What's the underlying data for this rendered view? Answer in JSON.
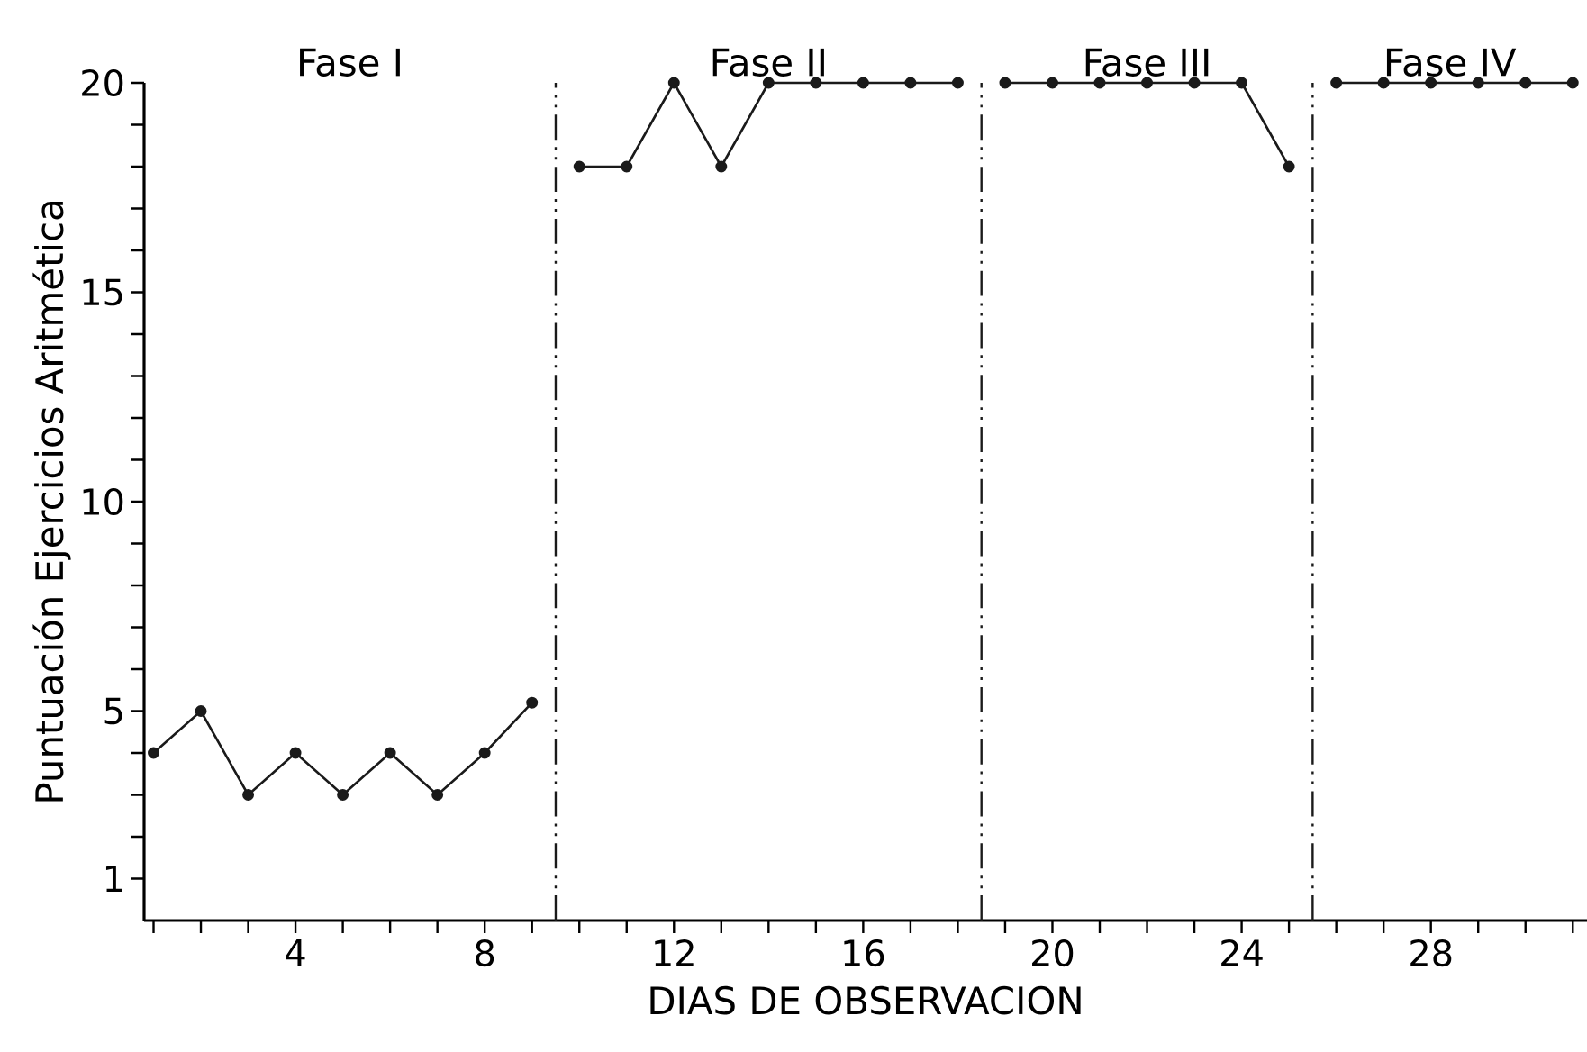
{
  "chart_data": {
    "type": "line",
    "xlabel": "DIAS DE OBSERVACION",
    "ylabel": "Puntuación Ejercicios Aritmética",
    "xlim": [
      0.8,
      31.3
    ],
    "ylim": [
      0,
      20
    ],
    "xticks": [
      {
        "value": 1,
        "label": null
      },
      {
        "value": 2,
        "label": null
      },
      {
        "value": 3,
        "label": null
      },
      4,
      {
        "value": 5,
        "label": null
      },
      {
        "value": 6,
        "label": null
      },
      {
        "value": 7,
        "label": null
      },
      8,
      {
        "value": 9,
        "label": null
      },
      {
        "value": 10,
        "label": null
      },
      {
        "value": 11,
        "label": null
      },
      12,
      {
        "value": 13,
        "label": null
      },
      {
        "value": 14,
        "label": null
      },
      {
        "value": 15,
        "label": null
      },
      16,
      {
        "value": 17,
        "label": null
      },
      {
        "value": 18,
        "label": null
      },
      {
        "value": 19,
        "label": null
      },
      20,
      {
        "value": 21,
        "label": null
      },
      {
        "value": 22,
        "label": null
      },
      {
        "value": 23,
        "label": null
      },
      24,
      {
        "value": 25,
        "label": null
      },
      {
        "value": 26,
        "label": null
      },
      {
        "value": 27,
        "label": null
      },
      28,
      {
        "value": 29,
        "label": null
      },
      {
        "value": 30,
        "label": null
      },
      {
        "value": 31,
        "label": null
      }
    ],
    "yticks": [
      1,
      {
        "value": 2,
        "label": null
      },
      {
        "value": 3,
        "label": null
      },
      {
        "value": 4,
        "label": null
      },
      5,
      {
        "value": 6,
        "label": null
      },
      {
        "value": 7,
        "label": null
      },
      {
        "value": 8,
        "label": null
      },
      {
        "value": 9,
        "label": null
      },
      10,
      {
        "value": 11,
        "label": null
      },
      {
        "value": 12,
        "label": null
      },
      {
        "value": 13,
        "label": null
      },
      {
        "value": 14,
        "label": null
      },
      15,
      {
        "value": 16,
        "label": null
      },
      {
        "value": 17,
        "label": null
      },
      {
        "value": 18,
        "label": null
      },
      {
        "value": 19,
        "label": null
      },
      20
    ],
    "marker": "circle",
    "line_style": "solid",
    "series": [
      {
        "color": "#1a1a1a",
        "x": [
          1,
          2,
          3,
          4,
          5,
          6,
          7,
          8,
          9
        ],
        "values": [
          4,
          5,
          3,
          4,
          3,
          4,
          3,
          4,
          5.2
        ]
      },
      {
        "color": "#1a1a1a",
        "x": [
          10,
          11,
          12,
          13,
          14,
          15,
          16,
          17,
          18
        ],
        "values": [
          18,
          18,
          20,
          18,
          20,
          20,
          20,
          20,
          20
        ]
      },
      {
        "color": "#1a1a1a",
        "x": [
          19,
          20,
          21,
          22,
          23,
          24,
          25
        ],
        "values": [
          20,
          20,
          20,
          20,
          20,
          20,
          18
        ]
      },
      {
        "color": "#1a1a1a",
        "x": [
          26,
          27,
          28,
          29,
          30,
          31
        ],
        "values": [
          20,
          20,
          20,
          20,
          20,
          20
        ]
      }
    ],
    "ref_lines": [
      {
        "axis": "x",
        "value": 9.5,
        "color": "#1a1a1a",
        "line_style": "dashdotted"
      },
      {
        "axis": "x",
        "value": 18.5,
        "color": "#1a1a1a",
        "line_style": "dashdotted"
      },
      {
        "axis": "x",
        "value": 25.5,
        "color": "#1a1a1a",
        "line_style": "dashdotted"
      }
    ],
    "annotations": [
      "Fase I",
      "Fase II",
      "Fase III",
      "Fase IV"
    ]
  }
}
